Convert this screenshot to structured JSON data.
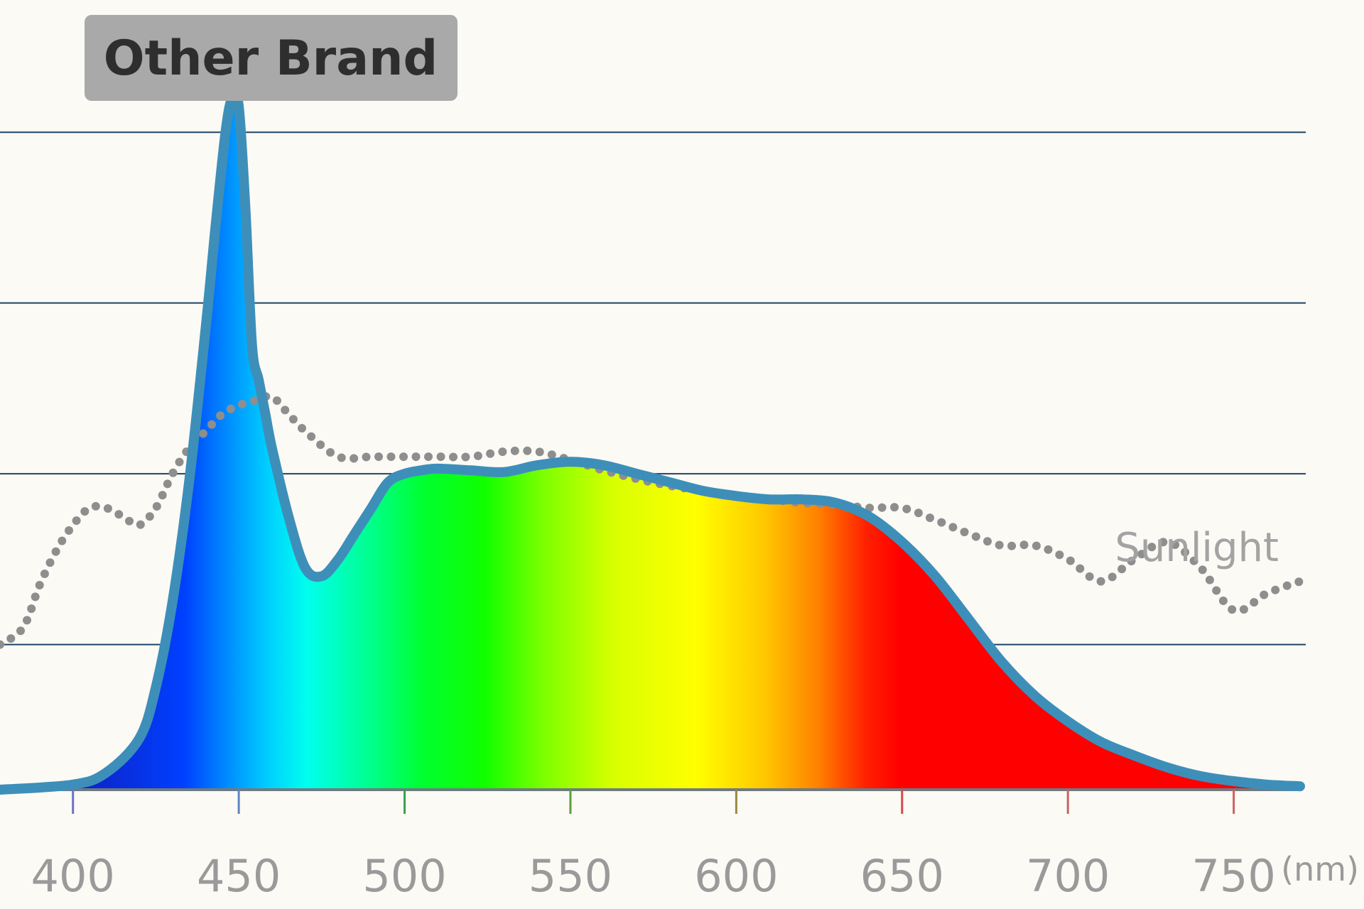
{
  "chart_data": {
    "type": "area",
    "title": "Other Brand",
    "xlabel": "(nm)",
    "ylabel": "",
    "xlim": [
      378,
      770
    ],
    "ylim": [
      0,
      4.25
    ],
    "x_ticks": [
      400,
      450,
      500,
      550,
      600,
      650,
      700,
      750
    ],
    "x_tick_labels": [
      "400",
      "450",
      "500",
      "550",
      "600",
      "650",
      "700",
      "750"
    ],
    "gridlines_y": [
      0.85,
      1.85,
      2.85,
      3.85
    ],
    "grid": true,
    "legend": "none",
    "series": [
      {
        "kind": "spectrum-fill",
        "x": [
          378,
          400,
          410,
          420,
          425,
          430,
          435,
          440,
          443,
          446,
          448,
          450,
          452,
          454,
          456,
          458,
          460,
          465,
          470,
          475,
          480,
          485,
          490,
          495,
          500,
          505,
          510,
          520,
          530,
          540,
          550,
          560,
          570,
          580,
          590,
          600,
          610,
          620,
          630,
          640,
          650,
          660,
          670,
          680,
          690,
          700,
          710,
          720,
          730,
          740,
          750,
          760,
          770
        ],
        "y": [
          0,
          0.03,
          0.1,
          0.3,
          0.6,
          1.1,
          1.8,
          2.7,
          3.3,
          3.85,
          4.05,
          4.0,
          3.4,
          2.6,
          2.4,
          2.2,
          2.0,
          1.6,
          1.3,
          1.25,
          1.35,
          1.5,
          1.65,
          1.8,
          1.85,
          1.87,
          1.88,
          1.87,
          1.86,
          1.9,
          1.92,
          1.9,
          1.85,
          1.8,
          1.75,
          1.72,
          1.7,
          1.7,
          1.68,
          1.6,
          1.45,
          1.25,
          1.0,
          0.75,
          0.55,
          0.4,
          0.28,
          0.2,
          0.13,
          0.08,
          0.05,
          0.03,
          0.02
        ]
      },
      {
        "name": "Sunlight",
        "style": "dotted",
        "x": [
          378,
          385,
          390,
          395,
          400,
          405,
          410,
          415,
          420,
          425,
          430,
          435,
          440,
          445,
          450,
          455,
          460,
          465,
          470,
          480,
          490,
          500,
          510,
          520,
          530,
          540,
          550,
          560,
          570,
          580,
          590,
          600,
          610,
          620,
          630,
          640,
          650,
          660,
          670,
          680,
          690,
          700,
          710,
          720,
          730,
          740,
          750,
          760,
          770
        ],
        "y": [
          0.85,
          0.95,
          1.2,
          1.4,
          1.55,
          1.65,
          1.65,
          1.6,
          1.55,
          1.65,
          1.85,
          2.0,
          2.1,
          2.2,
          2.25,
          2.28,
          2.3,
          2.2,
          2.1,
          1.95,
          1.95,
          1.95,
          1.95,
          1.95,
          1.98,
          1.98,
          1.93,
          1.87,
          1.82,
          1.78,
          1.75,
          1.72,
          1.7,
          1.68,
          1.67,
          1.65,
          1.65,
          1.58,
          1.5,
          1.43,
          1.43,
          1.35,
          1.22,
          1.35,
          1.45,
          1.3,
          1.05,
          1.15,
          1.22
        ]
      }
    ],
    "annotations": [
      {
        "text": "Sunlight"
      }
    ],
    "colors": {
      "outline": "#3d8fba",
      "gridline": "#1e4466",
      "sunlight_dots": "#8e8e8e",
      "tick_text": "#9a9a9a",
      "badge_bg": "#a9a9a9",
      "badge_text": "#2e2e2e",
      "background": "#fcfaf5"
    }
  }
}
